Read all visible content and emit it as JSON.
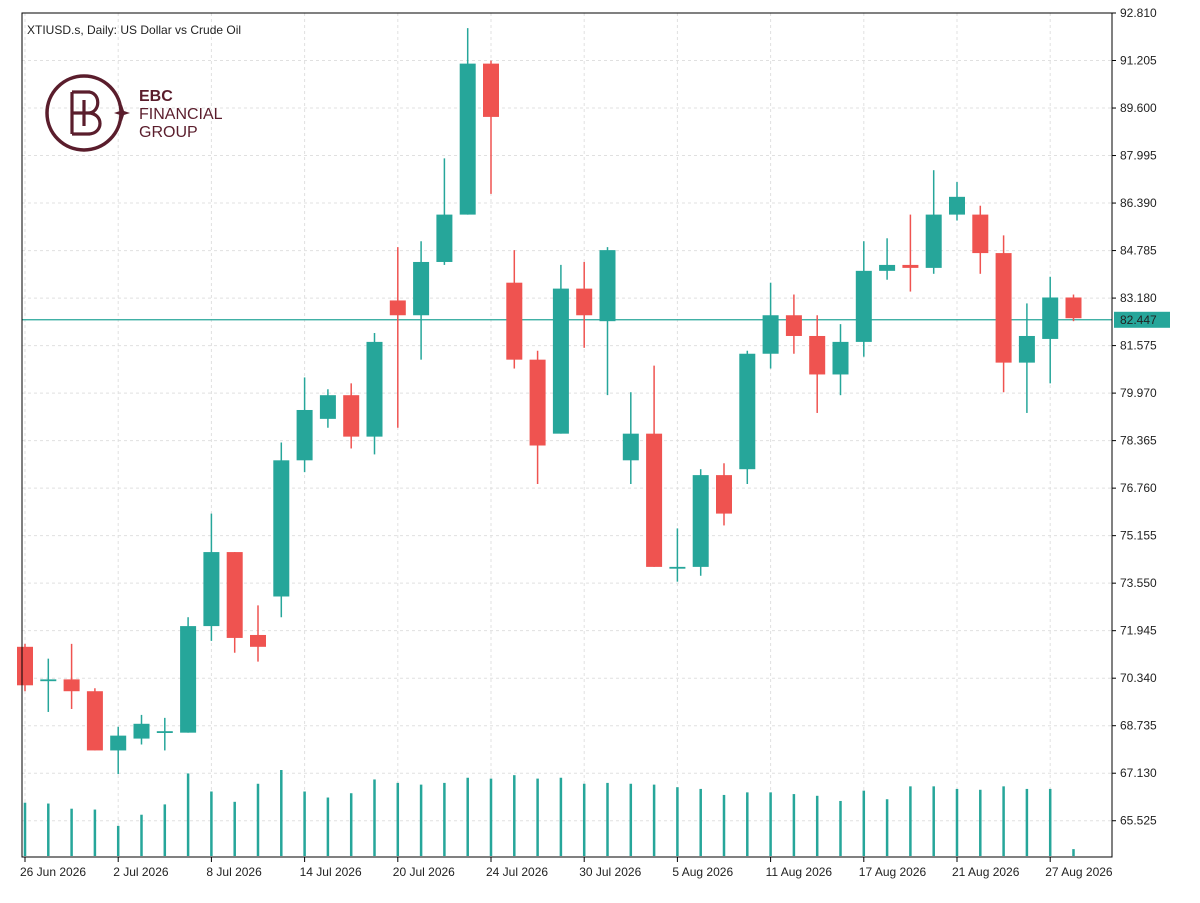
{
  "chart_title": "XTIUSD.s, Daily:  US Dollar vs Crude Oil",
  "logo": {
    "line1": "EBC",
    "line2": "FINANCIAL",
    "line3": "GROUP",
    "color": "#5a1d2c"
  },
  "colors": {
    "bull": "#26a69a",
    "bear": "#ef5350",
    "grid": "#e0e0e0",
    "price_line": "#26a69a",
    "axis": "#000000",
    "volume": "#26a69a"
  },
  "chart_data": {
    "type": "candlestick",
    "symbol": "XTIUSD.s",
    "timeframe": "Daily",
    "title": "US Dollar vs Crude Oil",
    "y_ticks": [
      "92.810",
      "91.205",
      "89.600",
      "87.995",
      "86.390",
      "84.785",
      "83.180",
      "81.575",
      "79.970",
      "78.365",
      "76.760",
      "75.155",
      "73.550",
      "71.945",
      "70.340",
      "68.735",
      "67.130",
      "65.525"
    ],
    "ylim": [
      64.3,
      92.81
    ],
    "x_labels": [
      {
        "i": 0,
        "label": "26 Jun 2026"
      },
      {
        "i": 4,
        "label": "2 Jul 2026"
      },
      {
        "i": 8,
        "label": "8 Jul 2026"
      },
      {
        "i": 12,
        "label": "14 Jul 2026"
      },
      {
        "i": 16,
        "label": "20 Jul 2026"
      },
      {
        "i": 20,
        "label": "24 Jul 2026"
      },
      {
        "i": 24,
        "label": "30 Jul 2026"
      },
      {
        "i": 28,
        "label": "5 Aug 2026"
      },
      {
        "i": 32,
        "label": "11 Aug 2026"
      },
      {
        "i": 36,
        "label": "17 Aug 2026"
      },
      {
        "i": 40,
        "label": "21 Aug 2026"
      },
      {
        "i": 44,
        "label": "27 Aug 2026"
      }
    ],
    "current_price": "82.447",
    "candles": [
      {
        "o": 71.4,
        "h": 71.5,
        "l": 69.9,
        "c": 70.1
      },
      {
        "o": 70.3,
        "h": 71.0,
        "l": 69.2,
        "c": 70.3
      },
      {
        "o": 70.3,
        "h": 71.5,
        "l": 69.3,
        "c": 69.9
      },
      {
        "o": 69.9,
        "h": 70.0,
        "l": 67.9,
        "c": 67.9
      },
      {
        "o": 67.9,
        "h": 68.7,
        "l": 67.1,
        "c": 68.4
      },
      {
        "o": 68.3,
        "h": 69.1,
        "l": 68.1,
        "c": 68.8
      },
      {
        "o": 68.55,
        "h": 69.0,
        "l": 67.9,
        "c": 68.55
      },
      {
        "o": 68.5,
        "h": 72.4,
        "l": 68.5,
        "c": 72.1
      },
      {
        "o": 72.1,
        "h": 75.9,
        "l": 71.6,
        "c": 74.6
      },
      {
        "o": 74.6,
        "h": 74.6,
        "l": 71.2,
        "c": 71.7
      },
      {
        "o": 71.8,
        "h": 72.8,
        "l": 70.9,
        "c": 71.4
      },
      {
        "o": 73.1,
        "h": 78.3,
        "l": 72.4,
        "c": 77.7
      },
      {
        "o": 77.7,
        "h": 80.5,
        "l": 77.3,
        "c": 79.4
      },
      {
        "o": 79.1,
        "h": 80.1,
        "l": 78.8,
        "c": 79.9
      },
      {
        "o": 79.9,
        "h": 80.3,
        "l": 78.1,
        "c": 78.5
      },
      {
        "o": 78.5,
        "h": 82.0,
        "l": 77.9,
        "c": 81.7
      },
      {
        "o": 83.1,
        "h": 84.9,
        "l": 78.8,
        "c": 82.6
      },
      {
        "o": 82.6,
        "h": 85.1,
        "l": 81.1,
        "c": 84.4
      },
      {
        "o": 84.4,
        "h": 87.9,
        "l": 84.3,
        "c": 86.0
      },
      {
        "o": 86.0,
        "h": 92.3,
        "l": 86.0,
        "c": 91.1
      },
      {
        "o": 91.1,
        "h": 91.2,
        "l": 86.7,
        "c": 89.3
      },
      {
        "o": 83.7,
        "h": 84.8,
        "l": 80.8,
        "c": 81.1
      },
      {
        "o": 81.1,
        "h": 81.4,
        "l": 76.9,
        "c": 78.2
      },
      {
        "o": 78.6,
        "h": 84.3,
        "l": 78.6,
        "c": 83.5
      },
      {
        "o": 83.5,
        "h": 84.4,
        "l": 81.5,
        "c": 82.6
      },
      {
        "o": 82.4,
        "h": 84.9,
        "l": 79.9,
        "c": 84.8
      },
      {
        "o": 77.7,
        "h": 80.0,
        "l": 76.9,
        "c": 78.6
      },
      {
        "o": 78.6,
        "h": 80.9,
        "l": 74.1,
        "c": 74.1
      },
      {
        "o": 74.1,
        "h": 75.4,
        "l": 73.6,
        "c": 74.1
      },
      {
        "o": 74.1,
        "h": 77.4,
        "l": 73.8,
        "c": 77.2
      },
      {
        "o": 77.2,
        "h": 77.6,
        "l": 75.5,
        "c": 75.9
      },
      {
        "o": 77.4,
        "h": 81.4,
        "l": 76.9,
        "c": 81.3
      },
      {
        "o": 81.3,
        "h": 83.7,
        "l": 80.8,
        "c": 82.6
      },
      {
        "o": 82.6,
        "h": 83.3,
        "l": 81.3,
        "c": 81.9
      },
      {
        "o": 81.9,
        "h": 82.6,
        "l": 79.3,
        "c": 80.6
      },
      {
        "o": 80.6,
        "h": 82.3,
        "l": 79.9,
        "c": 81.7
      },
      {
        "o": 81.7,
        "h": 85.1,
        "l": 81.2,
        "c": 84.1
      },
      {
        "o": 84.1,
        "h": 85.2,
        "l": 83.8,
        "c": 84.3
      },
      {
        "o": 84.3,
        "h": 86.0,
        "l": 83.4,
        "c": 84.2
      },
      {
        "o": 84.2,
        "h": 87.5,
        "l": 84.0,
        "c": 86.0
      },
      {
        "o": 86.0,
        "h": 87.1,
        "l": 85.8,
        "c": 86.6
      },
      {
        "o": 86.0,
        "h": 86.3,
        "l": 84.0,
        "c": 84.7
      },
      {
        "o": 84.7,
        "h": 85.3,
        "l": 80.0,
        "c": 81.0
      },
      {
        "o": 81.0,
        "h": 83.0,
        "l": 79.3,
        "c": 81.9
      },
      {
        "o": 81.8,
        "h": 83.9,
        "l": 80.3,
        "c": 83.2
      },
      {
        "o": 83.2,
        "h": 83.3,
        "l": 82.4,
        "c": 82.5
      }
    ],
    "volume": [
      0.62,
      0.61,
      0.55,
      0.54,
      0.35,
      0.48,
      0.6,
      0.96,
      0.75,
      0.63,
      0.84,
      1.0,
      0.75,
      0.68,
      0.73,
      0.89,
      0.85,
      0.83,
      0.85,
      0.91,
      0.9,
      0.94,
      0.9,
      0.91,
      0.84,
      0.85,
      0.84,
      0.83,
      0.8,
      0.78,
      0.71,
      0.74,
      0.74,
      0.72,
      0.7,
      0.64,
      0.76,
      0.66,
      0.81,
      0.81,
      0.78,
      0.77,
      0.81,
      0.78,
      0.78,
      0.08
    ]
  }
}
